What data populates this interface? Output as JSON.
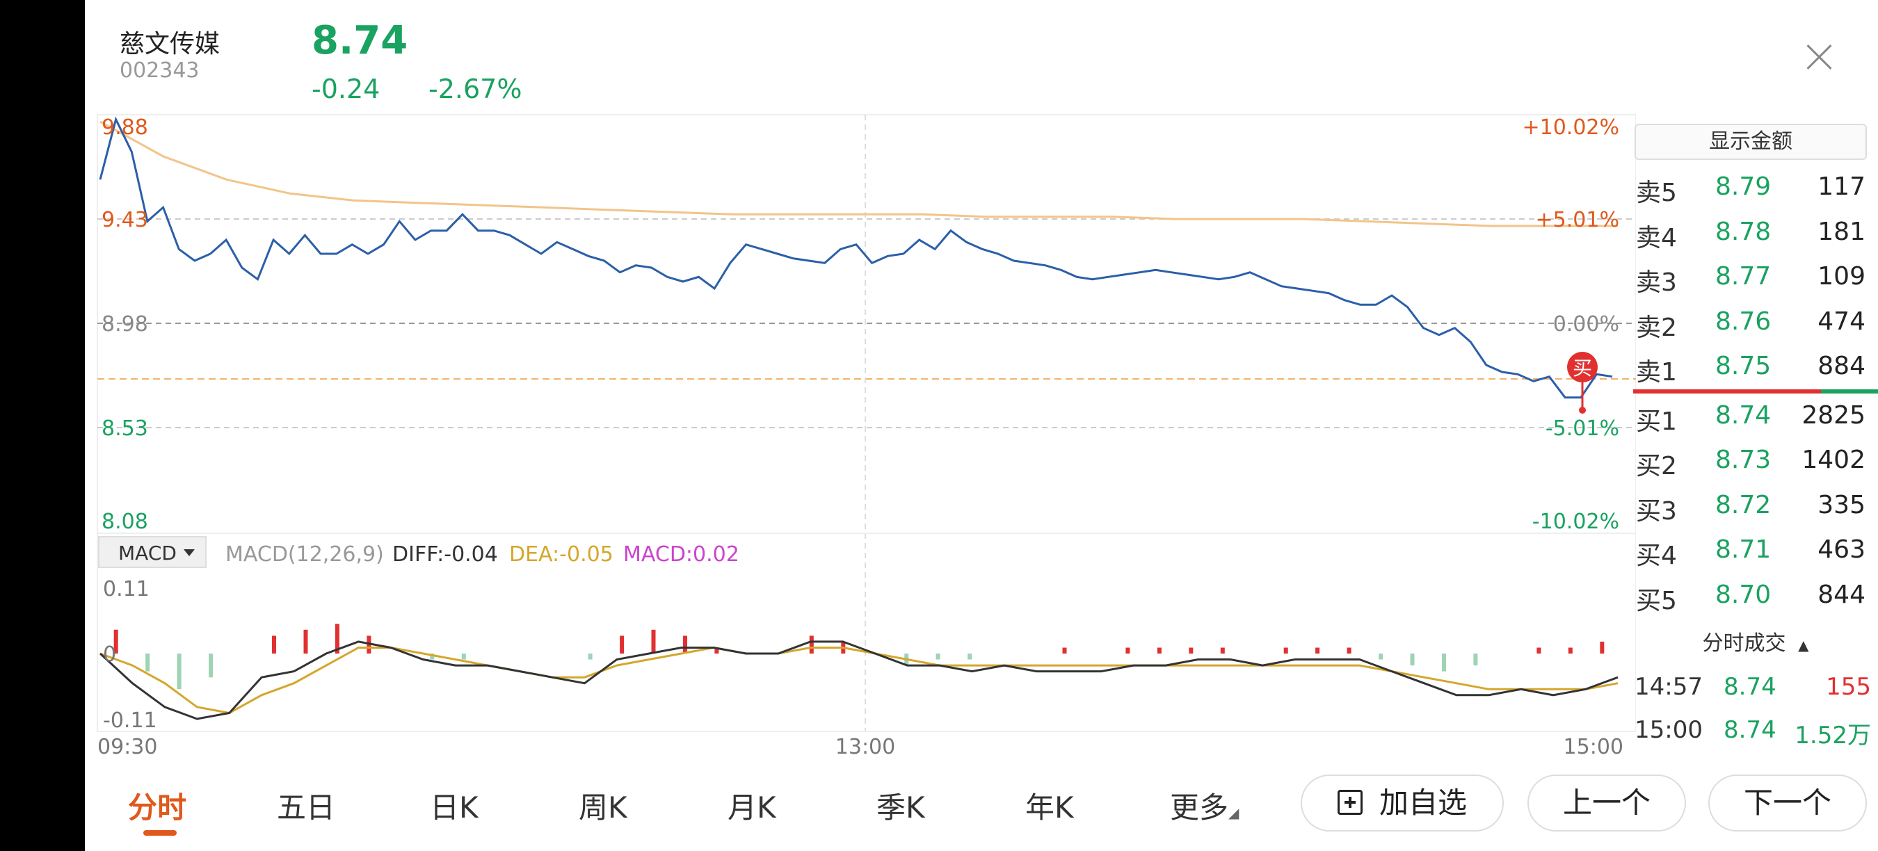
{
  "header": {
    "stock_name": "慈文传媒",
    "stock_code": "002343",
    "price": "8.74",
    "change": "-0.24",
    "change_pct": "-2.67%"
  },
  "chart": {
    "price_labels": [
      "9.88",
      "9.43",
      "8.98",
      "8.53",
      "8.08"
    ],
    "pct_labels": [
      "+10.02%",
      "+5.01%",
      "0.00%",
      "-5.01%",
      "-10.02%"
    ],
    "time_labels": [
      "09:30",
      "13:00",
      "15:00"
    ],
    "buy_marker": "买",
    "macd_selector": "MACD",
    "macd_params": "MACD(12,26,9)",
    "diff_text": "DIFF:-0.04",
    "dea_text": "DEA:-0.05",
    "macd_text": "MACD:0.02",
    "macd_axis": [
      "0.11",
      "0",
      "-0.11"
    ],
    "colors": {
      "up": "#e03030",
      "down": "#1aa260",
      "price_line": "#2b5fa8",
      "avg_line": "#f2c48a",
      "dea": "#d4a72c",
      "macd_label": "#cc44cc"
    }
  },
  "chart_data": {
    "type": "line",
    "x_range": [
      "09:30",
      "15:00"
    ],
    "ylim": [
      8.08,
      9.88
    ],
    "prev_close": 8.98,
    "series": [
      {
        "values": [
          9.6,
          9.86,
          9.72,
          9.42,
          9.48,
          9.3,
          9.25,
          9.28,
          9.34,
          9.22,
          9.17,
          9.34,
          9.28,
          9.36,
          9.28,
          9.28,
          9.32,
          9.28,
          9.32,
          9.42,
          9.34,
          9.38,
          9.38,
          9.45,
          9.38,
          9.38,
          9.36,
          9.32,
          9.28,
          9.33,
          9.3,
          9.27,
          9.25,
          9.2,
          9.23,
          9.22,
          9.18,
          9.16,
          9.18,
          9.13,
          9.24,
          9.32,
          9.3,
          9.28,
          9.26,
          9.25,
          9.24,
          9.3,
          9.32,
          9.24,
          9.27,
          9.28,
          9.34,
          9.3,
          9.38,
          9.33,
          9.3,
          9.28,
          9.25,
          9.24,
          9.23,
          9.21,
          9.18,
          9.17,
          9.18,
          9.19,
          9.2,
          9.21,
          9.2,
          9.19,
          9.18,
          9.17,
          9.18,
          9.2,
          9.17,
          9.14,
          9.13,
          9.12,
          9.11,
          9.08,
          9.06,
          9.06,
          9.1,
          9.05,
          8.96,
          8.93,
          8.96,
          8.9,
          8.8,
          8.77,
          8.76,
          8.73,
          8.75,
          8.66,
          8.66,
          8.76,
          8.75
        ]
      },
      {
        "values": [
          9.85,
          9.7,
          9.6,
          9.54,
          9.51,
          9.5,
          9.49,
          9.48,
          9.47,
          9.46,
          9.45,
          9.45,
          9.45,
          9.45,
          9.44,
          9.44,
          9.44,
          9.43,
          9.43,
          9.43,
          9.42,
          9.41,
          9.4,
          9.4,
          9.4
        ]
      }
    ],
    "macd": {
      "diff": [
        0.0,
        -0.05,
        -0.09,
        -0.11,
        -0.1,
        -0.04,
        -0.03,
        0.0,
        0.02,
        0.01,
        -0.01,
        -0.02,
        -0.02,
        -0.03,
        -0.04,
        -0.05,
        -0.01,
        0.0,
        0.01,
        0.01,
        0.0,
        0.0,
        0.02,
        0.02,
        0.0,
        -0.02,
        -0.02,
        -0.03,
        -0.02,
        -0.03,
        -0.03,
        -0.03,
        -0.02,
        -0.02,
        -0.01,
        -0.01,
        -0.02,
        -0.01,
        -0.01,
        -0.01,
        -0.03,
        -0.05,
        -0.07,
        -0.07,
        -0.06,
        -0.07,
        -0.06,
        -0.04
      ],
      "dea": [
        0.0,
        -0.02,
        -0.05,
        -0.09,
        -0.1,
        -0.07,
        -0.05,
        -0.02,
        0.01,
        0.01,
        0.0,
        -0.01,
        -0.02,
        -0.03,
        -0.04,
        -0.04,
        -0.02,
        -0.01,
        0.0,
        0.01,
        0.0,
        0.0,
        0.01,
        0.01,
        0.0,
        -0.01,
        -0.02,
        -0.02,
        -0.02,
        -0.02,
        -0.02,
        -0.02,
        -0.02,
        -0.02,
        -0.02,
        -0.02,
        -0.02,
        -0.02,
        -0.02,
        -0.02,
        -0.03,
        -0.04,
        -0.05,
        -0.06,
        -0.06,
        -0.06,
        -0.06,
        -0.05
      ],
      "hist": [
        0.04,
        -0.03,
        -0.06,
        -0.04,
        0.0,
        0.03,
        0.04,
        0.05,
        0.03,
        0.0,
        -0.01,
        -0.01,
        0.0,
        0.0,
        0.0,
        -0.01,
        0.03,
        0.04,
        0.03,
        0.01,
        0.0,
        0.0,
        0.03,
        0.02,
        0.0,
        -0.02,
        -0.01,
        -0.01,
        0.0,
        0.0,
        0.01,
        0.0,
        0.01,
        0.01,
        0.01,
        0.01,
        0.0,
        0.01,
        0.01,
        0.01,
        -0.01,
        -0.02,
        -0.03,
        -0.02,
        0.0,
        0.01,
        0.01,
        0.02
      ]
    }
  },
  "order_book": {
    "toggle_label": "显示金额",
    "asks": [
      {
        "label": "卖5",
        "price": "8.79",
        "volume": "117"
      },
      {
        "label": "卖4",
        "price": "8.78",
        "volume": "181"
      },
      {
        "label": "卖3",
        "price": "8.77",
        "volume": "109"
      },
      {
        "label": "卖2",
        "price": "8.76",
        "volume": "474"
      },
      {
        "label": "卖1",
        "price": "8.75",
        "volume": "884"
      }
    ],
    "bids": [
      {
        "label": "买1",
        "price": "8.74",
        "volume": "2825"
      },
      {
        "label": "买2",
        "price": "8.73",
        "volume": "1402"
      },
      {
        "label": "买3",
        "price": "8.72",
        "volume": "335"
      },
      {
        "label": "买4",
        "price": "8.71",
        "volume": "463"
      },
      {
        "label": "买5",
        "price": "8.70",
        "volume": "844"
      }
    ]
  },
  "trades": {
    "header": "分时成交",
    "rows": [
      {
        "time": "14:57",
        "price": "8.74",
        "volume": "155",
        "vol_color": "#e03030"
      },
      {
        "time": "15:00",
        "price": "8.74",
        "volume": "1.52万",
        "vol_color": "#1aa260"
      }
    ]
  },
  "tabs": [
    "分时",
    "五日",
    "日K",
    "周K",
    "月K",
    "季K",
    "年K",
    "更多"
  ],
  "actions": {
    "add_watchlist": "加自选",
    "prev": "上一个",
    "next": "下一个"
  }
}
